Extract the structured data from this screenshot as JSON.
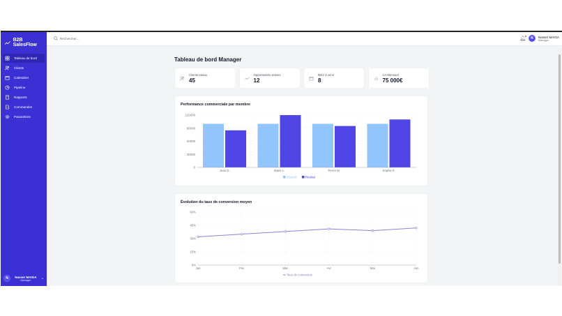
{
  "app": {
    "brand": "B2B SalesFlow"
  },
  "sidebar": {
    "items": [
      {
        "label": "Tableau de bord",
        "icon": "dashboard-icon",
        "active": true
      },
      {
        "label": "Clients",
        "icon": "users-icon"
      },
      {
        "label": "Calendrier",
        "icon": "calendar-icon"
      },
      {
        "label": "Pipeline",
        "icon": "pie-chart-icon"
      },
      {
        "label": "Rapports",
        "icon": "clipboard-icon"
      },
      {
        "label": "Commandes",
        "icon": "file-icon"
      },
      {
        "label": "Paramètres",
        "icon": "gear-icon"
      }
    ],
    "user": {
      "initial": "N",
      "name": "Nasser MAIGA",
      "role": "Manager"
    }
  },
  "header": {
    "search_placeholder": "Rechercher...",
    "user": {
      "initial": "N",
      "name": "Nasser MAIGA",
      "role": "Manager"
    }
  },
  "main": {
    "title": "Tableau de bord Manager",
    "stats": [
      {
        "label": "Clients totaux",
        "value": "45",
        "icon": "users-icon"
      },
      {
        "label": "Opportunités actives",
        "value": "12",
        "icon": "trending-up-icon"
      },
      {
        "label": "RDV à venir",
        "value": "8",
        "icon": "calendar-icon"
      },
      {
        "label": "CA Mensuel",
        "value": "75 000€",
        "icon": "bar-chart-icon"
      }
    ]
  },
  "colors": {
    "sidebar": "#3b30d4",
    "objectif": "#93c5fd",
    "realise": "#4f46e5",
    "line": "#8884d8"
  },
  "chart_data": [
    {
      "type": "bar",
      "title": "Performance commerciale par membre",
      "categories": [
        "Jean D.",
        "Marie L.",
        "Pierre M.",
        "Sophie K."
      ],
      "series": [
        {
          "name": "Objectif",
          "values": [
            100000,
            100000,
            100000,
            100000
          ]
        },
        {
          "name": "Réalisé",
          "values": [
            85000,
            120000,
            95000,
            110000
          ]
        }
      ],
      "ylim": [
        0,
        120000
      ],
      "yticks": [
        "0",
        "30000",
        "60000",
        "90000",
        "120000"
      ],
      "grid": true,
      "legend": "bottom"
    },
    {
      "type": "line",
      "title": "Évolution du taux de conversion moyen",
      "categories": [
        "Jan",
        "Fév",
        "Mar",
        "Avr",
        "Mai",
        "Jun"
      ],
      "series": [
        {
          "name": "Taux de conversion",
          "values": [
            32,
            35,
            38,
            41,
            39,
            42
          ]
        }
      ],
      "ylim": [
        0,
        60
      ],
      "yticks": [
        "0%",
        "15%",
        "30%",
        "45%",
        "60%"
      ],
      "grid": true,
      "legend": "bottom"
    }
  ]
}
